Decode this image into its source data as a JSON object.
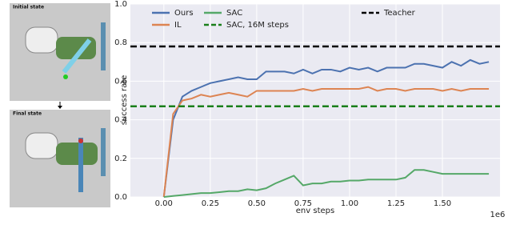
{
  "figure": {
    "panels": [
      {
        "label": "Initial state"
      },
      {
        "label": "Final state"
      }
    ]
  },
  "chart_data": {
    "type": "line",
    "xlabel": "env steps",
    "ylabel": "success rate",
    "x_offset_label": "1e6",
    "xlim": [
      -0.18,
      1.81
    ],
    "ylim": [
      0,
      1
    ],
    "xticks": [
      {
        "value": 0,
        "label": "0.00"
      },
      {
        "value": 0.25,
        "label": "0.25"
      },
      {
        "value": 0.5,
        "label": "0.50"
      },
      {
        "value": 0.75,
        "label": "0.75"
      },
      {
        "value": 1,
        "label": "1.00"
      },
      {
        "value": 1.25,
        "label": "1.25"
      },
      {
        "value": 1.5,
        "label": "1.50"
      }
    ],
    "yticks": [
      {
        "value": 0,
        "label": "0.0"
      },
      {
        "value": 0.2,
        "label": "0.2"
      },
      {
        "value": 0.4,
        "label": "0.4"
      },
      {
        "value": 0.6,
        "label": "0.6"
      },
      {
        "value": 0.8,
        "label": "0.8"
      },
      {
        "value": 1,
        "label": "1.0"
      }
    ],
    "grid": true,
    "x": [
      0,
      0.05,
      0.1,
      0.15,
      0.2,
      0.25,
      0.3,
      0.35,
      0.4,
      0.45,
      0.5,
      0.55,
      0.6,
      0.65,
      0.7,
      0.75,
      0.8,
      0.85,
      0.9,
      0.95,
      1,
      1.05,
      1.1,
      1.15,
      1.2,
      1.25,
      1.3,
      1.35,
      1.4,
      1.45,
      1.5,
      1.55,
      1.6,
      1.65,
      1.7,
      1.75
    ],
    "series": [
      {
        "name": "Ours",
        "color": "#4c72b0",
        "values": [
          0,
          0.4,
          0.52,
          0.55,
          0.57,
          0.59,
          0.6,
          0.61,
          0.62,
          0.61,
          0.61,
          0.65,
          0.65,
          0.65,
          0.64,
          0.66,
          0.64,
          0.66,
          0.66,
          0.65,
          0.67,
          0.66,
          0.67,
          0.65,
          0.67,
          0.67,
          0.67,
          0.69,
          0.69,
          0.68,
          0.67,
          0.7,
          0.68,
          0.71,
          0.69,
          0.7
        ]
      },
      {
        "name": "IL",
        "color": "#dd8452",
        "values": [
          0,
          0.43,
          0.5,
          0.51,
          0.53,
          0.52,
          0.53,
          0.54,
          0.53,
          0.52,
          0.55,
          0.55,
          0.55,
          0.55,
          0.55,
          0.56,
          0.55,
          0.56,
          0.56,
          0.56,
          0.56,
          0.56,
          0.57,
          0.55,
          0.56,
          0.56,
          0.55,
          0.56,
          0.56,
          0.56,
          0.55,
          0.56,
          0.55,
          0.56,
          0.56,
          0.56
        ]
      },
      {
        "name": "SAC",
        "color": "#55a868",
        "values": [
          0,
          0.005,
          0.01,
          0.015,
          0.02,
          0.02,
          0.025,
          0.03,
          0.03,
          0.04,
          0.035,
          0.045,
          0.07,
          0.09,
          0.11,
          0.06,
          0.07,
          0.07,
          0.08,
          0.08,
          0.085,
          0.085,
          0.09,
          0.09,
          0.09,
          0.09,
          0.1,
          0.14,
          0.14,
          0.13,
          0.12,
          0.12,
          0.12,
          0.12,
          0.12,
          0.12
        ]
      }
    ],
    "reference_lines": [
      {
        "name": "Teacher",
        "color": "#000000",
        "value": 0.78
      },
      {
        "name": "SAC, 16M steps",
        "color": "#1a7f1a",
        "value": 0.47
      }
    ]
  }
}
